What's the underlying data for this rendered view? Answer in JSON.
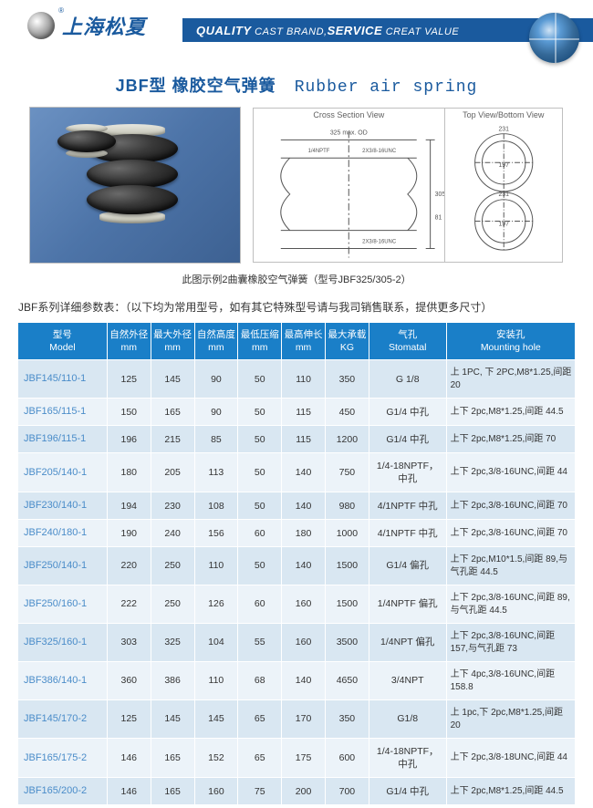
{
  "brand": "上海松夏",
  "slogan_parts": {
    "q": "QUALITY",
    "cb": " CAST BRAND,",
    "s": "SERVICE",
    "cv": " CREAT VALUE"
  },
  "title_zh": "JBF型 橡胶空气弹簧",
  "title_en": "Rubber air spring",
  "diagram": {
    "cross_label": "Cross Section View",
    "top_label": "Top View/Bottom View",
    "caption": "此图示例2曲囊橡胶空气弹簧（型号JBF325/305-2）",
    "dims": {
      "max_od": "325 max. OD",
      "npt": "1/4NPTF",
      "unc": "2X3/8-16UNC",
      "h": "305",
      "lobe_h": "81",
      "top_od": "231",
      "top_id": "197"
    }
  },
  "table_note": "JBF系列详细参数表：（以下均为常用型号，如有其它特殊型号请与我司销售联系，提供更多尺寸）",
  "columns": [
    {
      "zh": "型号",
      "en": "Model"
    },
    {
      "zh": "自然外径",
      "en": "mm"
    },
    {
      "zh": "最大外径",
      "en": "mm"
    },
    {
      "zh": "自然高度",
      "en": "mm"
    },
    {
      "zh": "最低压缩",
      "en": "mm"
    },
    {
      "zh": "最高伸长",
      "en": "mm"
    },
    {
      "zh": "最大承载",
      "en": "KG"
    },
    {
      "zh": "气孔",
      "en": "Stomatal"
    },
    {
      "zh": "安装孔",
      "en": "Mounting hole"
    }
  ],
  "rows": [
    {
      "model": "JBF145/110-1",
      "nd": "125",
      "md": "145",
      "nh": "90",
      "minc": "50",
      "maxe": "110",
      "load": "350",
      "stom": "G 1/8",
      "mount": "上 1PC, 下 2PC,M8*1.25,间距 20"
    },
    {
      "model": "JBF165/115-1",
      "nd": "150",
      "md": "165",
      "nh": "90",
      "minc": "50",
      "maxe": "115",
      "load": "450",
      "stom": "G1/4 中孔",
      "mount": "上下 2pc,M8*1.25,间距 44.5"
    },
    {
      "model": "JBF196/115-1",
      "nd": "196",
      "md": "215",
      "nh": "85",
      "minc": "50",
      "maxe": "115",
      "load": "1200",
      "stom": "G1/4 中孔",
      "mount": "上下 2pc,M8*1.25,间距 70"
    },
    {
      "model": "JBF205/140-1",
      "nd": "180",
      "md": "205",
      "nh": "113",
      "minc": "50",
      "maxe": "140",
      "load": "750",
      "stom": "1/4-18NPTF，中孔",
      "mount": "上下 2pc,3/8-16UNC,间距 44"
    },
    {
      "model": "JBF230/140-1",
      "nd": "194",
      "md": "230",
      "nh": "108",
      "minc": "50",
      "maxe": "140",
      "load": "980",
      "stom": "4/1NPTF 中孔",
      "mount": "上下 2pc,3/8-16UNC,间距 70"
    },
    {
      "model": "JBF240/180-1",
      "nd": "190",
      "md": "240",
      "nh": "156",
      "minc": "60",
      "maxe": "180",
      "load": "1000",
      "stom": "4/1NPTF 中孔",
      "mount": "上下 2pc,3/8-16UNC,间距 70"
    },
    {
      "model": "JBF250/140-1",
      "nd": "220",
      "md": "250",
      "nh": "110",
      "minc": "50",
      "maxe": "140",
      "load": "1500",
      "stom": "G1/4 偏孔",
      "mount": "上下 2pc,M10*1.5,间距 89,与气孔距 44.5"
    },
    {
      "model": "JBF250/160-1",
      "nd": "222",
      "md": "250",
      "nh": "126",
      "minc": "60",
      "maxe": "160",
      "load": "1500",
      "stom": "1/4NPTF 偏孔",
      "mount": "上下 2pc,3/8-16UNC,间距 89,与气孔距 44.5"
    },
    {
      "model": "JBF325/160-1",
      "nd": "303",
      "md": "325",
      "nh": "104",
      "minc": "55",
      "maxe": "160",
      "load": "3500",
      "stom": "1/4NPT 偏孔",
      "mount": "上下 2pc,3/8-16UNC,间距 157,与气孔距 73"
    },
    {
      "model": "JBF386/140-1",
      "nd": "360",
      "md": "386",
      "nh": "110",
      "minc": "68",
      "maxe": "140",
      "load": "4650",
      "stom": "3/4NPT",
      "mount": "上下 4pc,3/8-16UNC,间距 158.8"
    },
    {
      "model": "JBF145/170-2",
      "nd": "125",
      "md": "145",
      "nh": "145",
      "minc": "65",
      "maxe": "170",
      "load": "350",
      "stom": "G1/8",
      "mount": "上 1pc,下 2pc,M8*1.25,间距 20"
    },
    {
      "model": "JBF165/175-2",
      "nd": "146",
      "md": "165",
      "nh": "152",
      "minc": "65",
      "maxe": "175",
      "load": "600",
      "stom": "1/4-18NPTF，中孔",
      "mount": "上下 2pc,3/8-18UNC,间距 44"
    },
    {
      "model": "JBF165/200-2",
      "nd": "146",
      "md": "165",
      "nh": "160",
      "minc": "75",
      "maxe": "200",
      "load": "700",
      "stom": "G1/4 中孔",
      "mount": "上下 2pc,M8*1.25,间距 44.5"
    }
  ]
}
